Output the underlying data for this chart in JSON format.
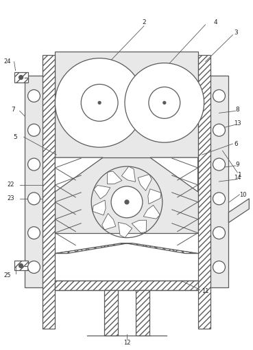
{
  "fig_width": 3.69,
  "fig_height": 5.09,
  "dpi": 100,
  "bg_color": "#ffffff",
  "line_color": "#5a5a5a",
  "inner_bg": "#e8e8e8",
  "wall_bg": "#e0e0e0",
  "panel_bg": "#e8e8e8"
}
